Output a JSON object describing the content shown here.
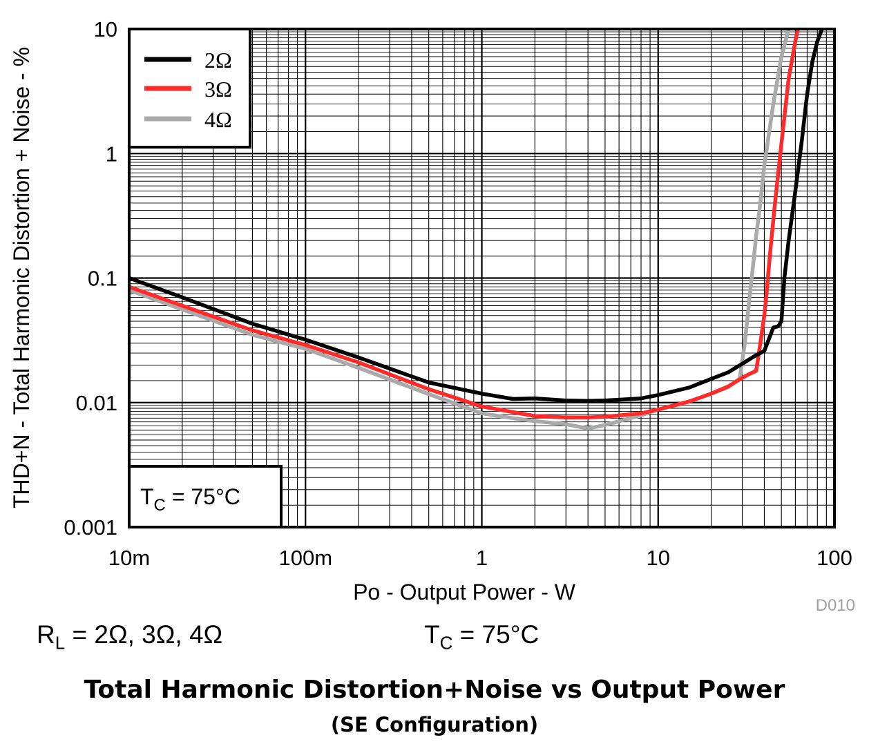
{
  "chart_data": {
    "type": "line",
    "xlabel": "Po - Output Power - W",
    "ylabel": "THD+N - Total Harmonic Distortion + Noise - %",
    "x_scale": "log",
    "y_scale": "log",
    "xlim": [
      0.01,
      100
    ],
    "ylim": [
      0.001,
      10
    ],
    "x_ticks": [
      "10m",
      "100m",
      "1",
      "10",
      "100"
    ],
    "y_ticks": [
      "10",
      "1",
      "0.1",
      "0.01",
      "0.001"
    ],
    "grid": true,
    "legend_position": "top-left",
    "figure_code": "D010",
    "annotation": {
      "prefix": "T",
      "sub": "C",
      "suffix": " = 75°C"
    },
    "series": [
      {
        "name": "2Ω",
        "color": "#000000",
        "x": [
          0.01,
          0.02,
          0.05,
          0.1,
          0.2,
          0.5,
          1,
          1.5,
          2,
          3,
          4,
          5,
          8,
          10,
          15,
          20,
          25,
          30,
          35,
          40,
          45,
          48,
          50,
          52,
          55,
          60,
          65,
          70,
          75,
          80,
          85
        ],
        "y": [
          0.1,
          0.07,
          0.043,
          0.032,
          0.023,
          0.0145,
          0.0118,
          0.0107,
          0.0108,
          0.0104,
          0.0103,
          0.0104,
          0.0108,
          0.0115,
          0.0132,
          0.0155,
          0.0175,
          0.0205,
          0.0235,
          0.026,
          0.04,
          0.041,
          0.045,
          0.1,
          0.2,
          0.5,
          1.2,
          3,
          5.5,
          8,
          10
        ]
      },
      {
        "name": "3Ω",
        "color": "#ff2a2a",
        "x": [
          0.01,
          0.02,
          0.05,
          0.1,
          0.2,
          0.5,
          1,
          2,
          3,
          4,
          5,
          8,
          10,
          15,
          20,
          25,
          30,
          33,
          36,
          38,
          40,
          41,
          43,
          46,
          50,
          55,
          60,
          62
        ],
        "y": [
          0.085,
          0.06,
          0.038,
          0.029,
          0.021,
          0.0128,
          0.0093,
          0.0078,
          0.0076,
          0.0076,
          0.0077,
          0.0082,
          0.0088,
          0.0102,
          0.0118,
          0.0135,
          0.0158,
          0.017,
          0.018,
          0.03,
          0.05,
          0.07,
          0.15,
          0.4,
          1.2,
          4,
          8,
          10
        ]
      },
      {
        "name": "4Ω",
        "color": "#aaaaaa",
        "x": [
          0.01,
          0.02,
          0.05,
          0.1,
          0.2,
          0.5,
          1,
          1.5,
          2,
          3,
          4,
          5,
          8,
          10,
          15,
          20,
          25,
          27,
          29,
          31,
          33,
          35,
          36,
          38,
          40,
          45,
          50,
          55
        ],
        "y": [
          0.08,
          0.056,
          0.035,
          0.027,
          0.019,
          0.0117,
          0.0082,
          0.0075,
          0.0071,
          0.0067,
          0.0062,
          0.0066,
          0.0079,
          0.0088,
          0.0102,
          0.0118,
          0.0133,
          0.0145,
          0.0155,
          0.03,
          0.07,
          0.15,
          0.22,
          0.4,
          0.8,
          2.5,
          6,
          10
        ]
      }
    ]
  },
  "conditions": {
    "rl": {
      "prefix": "R",
      "sub": "L",
      "suffix": " = 2Ω, 3Ω, 4Ω"
    },
    "tc": {
      "prefix": "T",
      "sub": "C",
      "suffix": " = 75°C"
    }
  },
  "caption": {
    "title": "Total Harmonic Distortion+Noise vs Output Power",
    "subtitle": "(SE Configuration)"
  }
}
